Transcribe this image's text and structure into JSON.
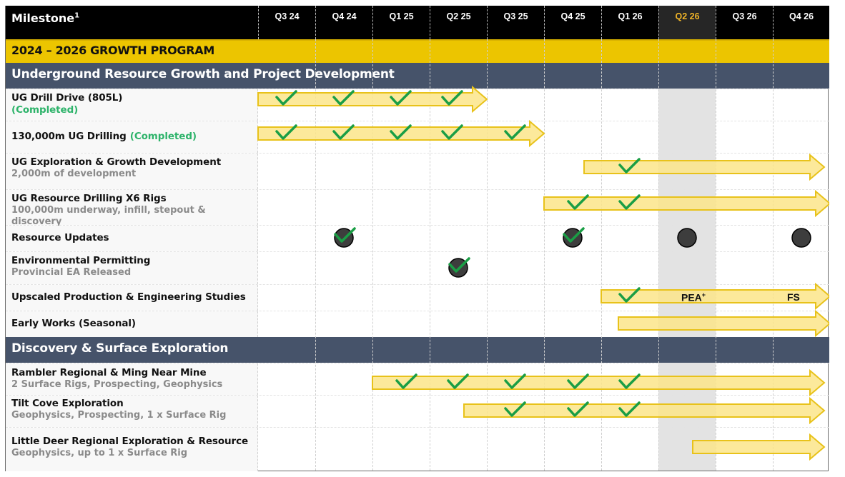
{
  "header": {
    "title": "Milestone",
    "title_superscript": "1",
    "quarters": [
      "Q3 24",
      "Q4 24",
      "Q1 25",
      "Q2 25",
      "Q3 25",
      "Q4 25",
      "Q1 26",
      "Q2 26",
      "Q3 26",
      "Q4 26"
    ],
    "highlighted_quarter": "Q2 26"
  },
  "program_banner": "2024 – 2026 GROWTH PROGRAM",
  "sections": [
    {
      "title": "Underground Resource Growth and Project Development",
      "rows": [
        {
          "title": "UG Drill Drive (805L)",
          "status": "(Completed)",
          "subtitle": ""
        },
        {
          "title": "130,000m UG Drilling",
          "status": "(Completed)",
          "subtitle": ""
        },
        {
          "title": "UG Exploration & Growth Development",
          "status": "",
          "subtitle": "2,000m of development"
        },
        {
          "title": "UG Resource Drilling X6 Rigs",
          "status": "",
          "subtitle": "100,000m underway, infill, stepout & discovery"
        },
        {
          "title": "Resource Updates",
          "status": "",
          "subtitle": ""
        },
        {
          "title": "Environmental Permitting",
          "status": "",
          "subtitle": "Provincial EA Released"
        },
        {
          "title": "Upscaled Production & Engineering Studies",
          "status": "",
          "subtitle": ""
        },
        {
          "title": "Early Works (Seasonal)",
          "status": "",
          "subtitle": ""
        }
      ]
    },
    {
      "title": "Discovery & Surface Exploration",
      "rows": [
        {
          "title": "Rambler Regional & Ming Near Mine",
          "status": "",
          "subtitle": "2 Surface Rigs, Prospecting, Geophysics"
        },
        {
          "title": "Tilt Cove Exploration",
          "status": "",
          "subtitle": "Geophysics, Prospecting, 1 x Surface Rig"
        },
        {
          "title": "Little Deer Regional Exploration & Resource",
          "status": "",
          "subtitle": "Geophysics, up to 1 x Surface Rig"
        }
      ]
    }
  ],
  "timeline_labels": {
    "pea": "PEA",
    "pea_superscript": "+",
    "fs": "FS"
  },
  "colors": {
    "header_bg": "#000000",
    "highlight_quarter_text": "#f0b428",
    "banner_yellow": "#ecc500",
    "section_bg": "#46536a",
    "arrow_fill": "#fbe58a",
    "arrow_stroke": "#e8c21a",
    "check_green": "#1a9e45",
    "completed_green": "#2db36a",
    "milestone_dot": "#3d3d3d",
    "highlight_column": "#e3e3e3"
  },
  "chart_data": {
    "type": "gantt",
    "title": "2024 – 2026 GROWTH PROGRAM",
    "categories": [
      "Q3 24",
      "Q4 24",
      "Q1 25",
      "Q2 25",
      "Q3 25",
      "Q4 25",
      "Q1 26",
      "Q2 26",
      "Q3 26",
      "Q4 26"
    ],
    "current_quarter": "Q2 26",
    "tasks": [
      {
        "name": "UG Drill Drive (805L)",
        "section": "Underground",
        "start": 0.0,
        "end": 4.0,
        "checks": [
          0.5,
          1.5,
          2.5,
          3.4
        ],
        "completed": true
      },
      {
        "name": "130,000m UG Drilling",
        "section": "Underground",
        "start": 0.0,
        "end": 5.0,
        "checks": [
          0.5,
          1.5,
          2.5,
          3.4,
          4.5
        ],
        "completed": true
      },
      {
        "name": "UG Exploration & Growth Development",
        "section": "Underground",
        "start": 5.7,
        "end": 9.9,
        "checks": [
          6.5
        ]
      },
      {
        "name": "UG Resource Drilling X6 Rigs",
        "section": "Underground",
        "start": 5.0,
        "end": 10.0,
        "checks": [
          5.6,
          6.5
        ]
      },
      {
        "name": "Resource Updates",
        "section": "Underground",
        "milestones": [
          {
            "q": 1.5,
            "done": true
          },
          {
            "q": 5.5,
            "done": true
          },
          {
            "q": 7.5,
            "done": false
          },
          {
            "q": 9.5,
            "done": false
          }
        ]
      },
      {
        "name": "Environmental Permitting",
        "section": "Underground",
        "milestones": [
          {
            "q": 3.5,
            "done": true
          }
        ]
      },
      {
        "name": "Upscaled Production & Engineering Studies",
        "section": "Underground",
        "start": 6.0,
        "end": 10.0,
        "checks": [
          6.5
        ],
        "labels": [
          {
            "q": 7.7,
            "text": "PEA+"
          },
          {
            "q": 9.4,
            "text": "FS"
          }
        ]
      },
      {
        "name": "Early Works (Seasonal)",
        "section": "Underground",
        "start": 6.3,
        "end": 10.0,
        "checks": []
      },
      {
        "name": "Rambler Regional & Ming Near Mine",
        "section": "Discovery",
        "start": 2.0,
        "end": 9.9,
        "checks": [
          2.6,
          3.5,
          4.5,
          5.6,
          6.5
        ]
      },
      {
        "name": "Tilt Cove Exploration",
        "section": "Discovery",
        "start": 3.6,
        "end": 9.9,
        "checks": [
          4.5,
          5.6,
          6.5
        ]
      },
      {
        "name": "Little Deer Regional Exploration & Resource",
        "section": "Discovery",
        "start": 7.6,
        "end": 9.9,
        "checks": []
      }
    ]
  }
}
